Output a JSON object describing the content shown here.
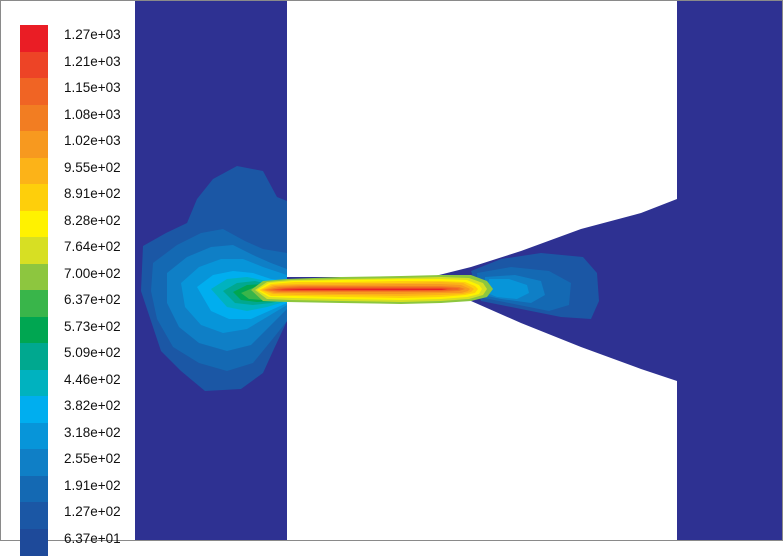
{
  "chart_data": {
    "type": "heatmap",
    "title": "",
    "xlabel": "",
    "ylabel": "",
    "colorbar": {
      "levels": [
        {
          "label": "1.27e+03",
          "value": 1270,
          "color": "#ea1d25"
        },
        {
          "label": "1.21e+03",
          "value": 1210,
          "color": "#ed4426"
        },
        {
          "label": "1.15e+03",
          "value": 1150,
          "color": "#f06424"
        },
        {
          "label": "1.08e+03",
          "value": 1080,
          "color": "#f27d22"
        },
        {
          "label": "1.02e+03",
          "value": 1020,
          "color": "#f7991f"
        },
        {
          "label": "9.55e+02",
          "value": 955,
          "color": "#fcb318"
        },
        {
          "label": "8.91e+02",
          "value": 891,
          "color": "#fecf0b"
        },
        {
          "label": "8.28e+02",
          "value": 828,
          "color": "#fff200"
        },
        {
          "label": "7.64e+02",
          "value": 764,
          "color": "#d7df23"
        },
        {
          "label": "7.00e+02",
          "value": 700,
          "color": "#8dc63f"
        },
        {
          "label": "6.37e+02",
          "value": 637,
          "color": "#39b54a"
        },
        {
          "label": "5.73e+02",
          "value": 573,
          "color": "#00a651"
        },
        {
          "label": "5.09e+02",
          "value": 509,
          "color": "#00a88f"
        },
        {
          "label": "4.46e+02",
          "value": 446,
          "color": "#00b2bf"
        },
        {
          "label": "3.82e+02",
          "value": 382,
          "color": "#00aeef"
        },
        {
          "label": "3.18e+02",
          "value": 318,
          "color": "#0795d9"
        },
        {
          "label": "2.55e+02",
          "value": 255,
          "color": "#0f7fc6"
        },
        {
          "label": "1.91e+02",
          "value": 191,
          "color": "#1469b3"
        },
        {
          "label": "1.27e+02",
          "value": 127,
          "color": "#1b57a5"
        },
        {
          "label": "6.37e+01",
          "value": 63.7,
          "color": "#1e4a9a"
        }
      ],
      "background_color": "#2e3192"
    }
  }
}
